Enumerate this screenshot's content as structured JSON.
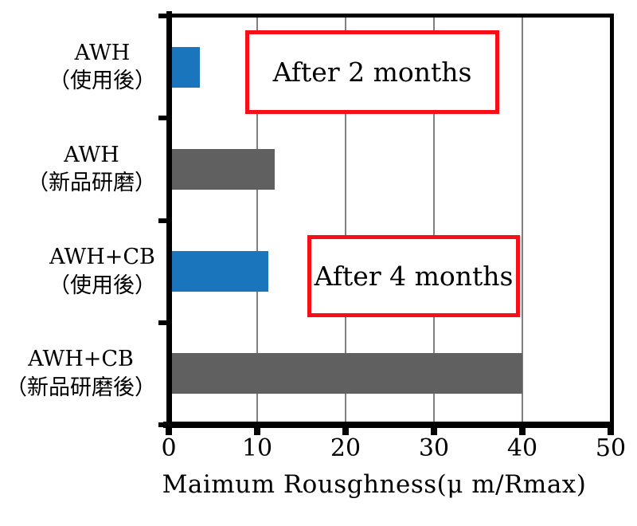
{
  "chart_data": {
    "type": "bar",
    "orientation": "horizontal",
    "title": "",
    "xlabel": "Maimum Rousghness(μ m/Rmax)",
    "ylabel": "",
    "xlim": [
      0,
      50
    ],
    "xticks": [
      0,
      10,
      20,
      30,
      40,
      50
    ],
    "grid": "vertical gridlines at each x tick",
    "legend": "none",
    "categories": [
      "AWH（使用後）",
      "AWH（新品研磨）",
      "AWH+CB（使用後）",
      "AWH+CB（新品研磨後）"
    ],
    "category_lines": [
      [
        "AWH",
        "（使用後）"
      ],
      [
        "AWH",
        "（新品研磨）"
      ],
      [
        "AWH+CB",
        "（使用後）"
      ],
      [
        "AWH+CB",
        "（新品研磨後）"
      ]
    ],
    "values": [
      3.5,
      12,
      11.3,
      40
    ],
    "bar_colors": [
      "#1B75BC",
      "#606060",
      "#1B75BC",
      "#606060"
    ],
    "annotations": [
      {
        "text": "After 2 months"
      },
      {
        "text": "After 4 months"
      }
    ]
  },
  "colors": {
    "bar_blue": "#1B75BC",
    "bar_gray": "#606060",
    "axis_black": "#000000",
    "gridline_gray": "#808080",
    "annotation_border_red": "#F80E17",
    "text_black": "#000000",
    "background": "#FFFFFF"
  }
}
